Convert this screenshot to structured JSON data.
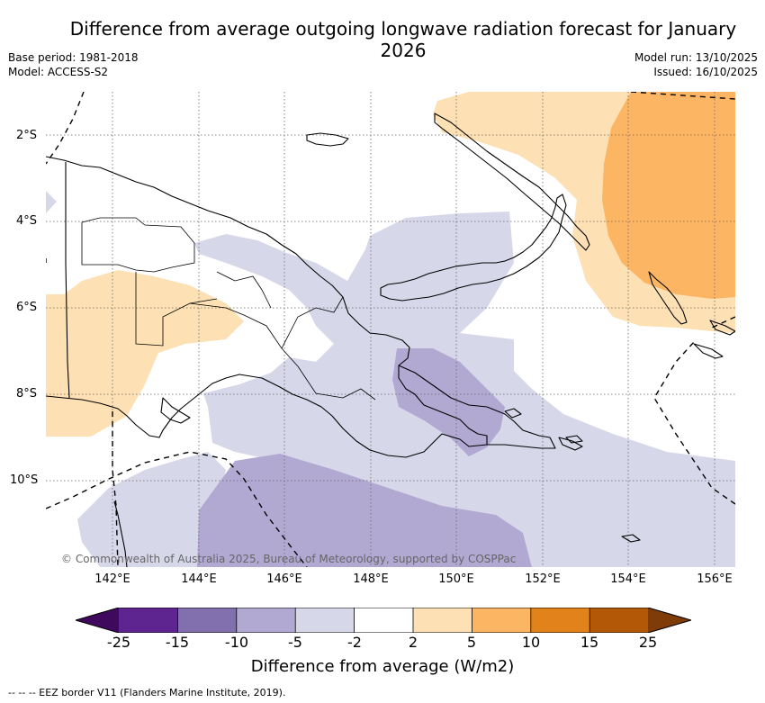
{
  "title": "Difference from average outgoing longwave radiation forecast for January 2026",
  "meta": {
    "base_period": "Base period: 1981-2018",
    "model": "Model: ACCESS-S2",
    "model_run": "Model run: 13/10/2025",
    "issued": "Issued: 16/10/2025"
  },
  "axes": {
    "lat_labels": [
      "2°S",
      "4°S",
      "6°S",
      "8°S",
      "10°S"
    ],
    "lon_labels": [
      "142°E",
      "144°E",
      "146°E",
      "148°E",
      "150°E",
      "152°E",
      "154°E",
      "156°E"
    ]
  },
  "credit": "© Commonwealth of Australia 2025, Bureau of Meteorology, supported by COSPPac",
  "colorbar": {
    "title": "Difference from average (W/m2)",
    "tick_labels": [
      "-25",
      "-15",
      "-10",
      "-5",
      "-2",
      "2",
      "5",
      "10",
      "15",
      "25"
    ],
    "colors": [
      "#3f0a5e",
      "#5e2590",
      "#8170ad",
      "#b1a9d2",
      "#d7d7ea",
      "#ffffff",
      "#fde0b4",
      "#fbb563",
      "#e1821a",
      "#b35806",
      "#7f3b08"
    ]
  },
  "footnote": "--  --  -- EEZ border V11 (Flanders Marine Institute, 2019)."
}
